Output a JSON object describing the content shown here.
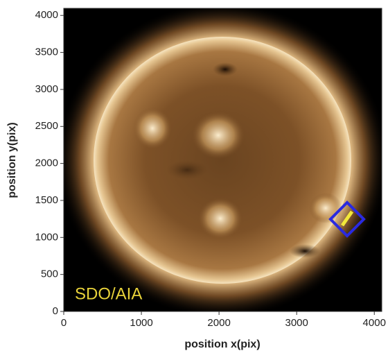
{
  "chart_data": {
    "type": "image",
    "xlabel": "position x(pix)",
    "ylabel": "position y(pix)",
    "annotation": "SDO/AIA",
    "xlim": [
      0,
      4096
    ],
    "ylim": [
      0,
      4096
    ],
    "xticks": [
      0,
      1000,
      2000,
      3000,
      4000
    ],
    "yticks": [
      0,
      500,
      1000,
      1500,
      2000,
      2500,
      3000,
      3500,
      4000
    ]
  }
}
